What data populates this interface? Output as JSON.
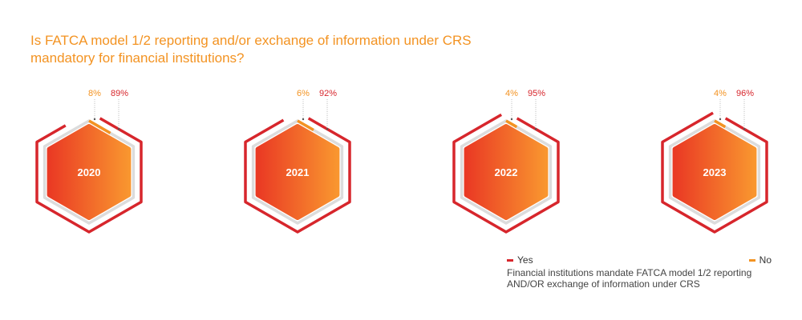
{
  "title": "Is FATCA model 1/2 reporting and/or exchange of information under CRS mandatory for financial institutions?",
  "colors": {
    "yes": "#d7262c",
    "no": "#f39322",
    "track": "#dcdcdc",
    "fill_start": "#ea3a24",
    "fill_end": "#f9962f"
  },
  "legend": {
    "yes_label": "Yes",
    "no_label": "No",
    "description": "Financial institutions mandate FATCA model 1/2 reporting AND/OR exchange of information under CRS"
  },
  "chart_data": {
    "type": "radial-hexagon",
    "title": "Is FATCA model 1/2 reporting and/or exchange of information under CRS mandatory for financial institutions?",
    "categories": [
      "2020",
      "2021",
      "2022",
      "2023"
    ],
    "series": [
      {
        "name": "Yes",
        "values": [
          89,
          92,
          95,
          96
        ],
        "labels": [
          "89%",
          "92%",
          "95%",
          "96%"
        ]
      },
      {
        "name": "No",
        "values": [
          8,
          6,
          4,
          4
        ],
        "labels": [
          "8%",
          "6%",
          "4%",
          "4%"
        ]
      }
    ],
    "unit": "%",
    "legend_position": "bottom-right"
  }
}
